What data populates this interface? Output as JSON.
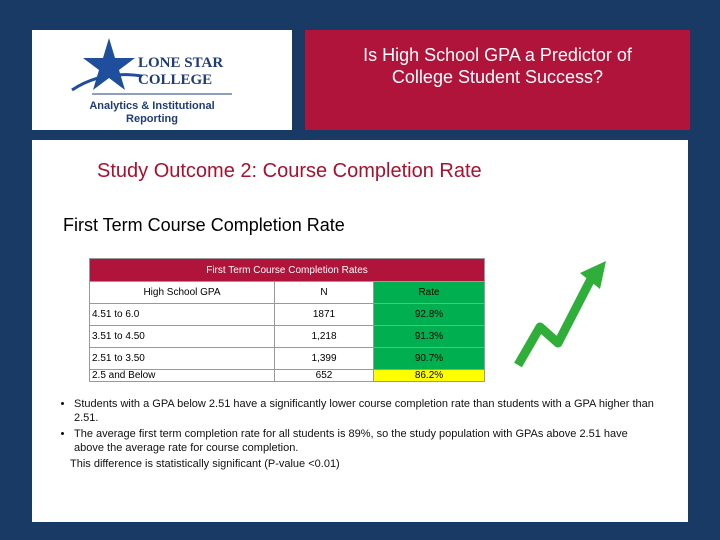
{
  "header": {
    "title": [
      "Is High School GPA a Predictor of",
      "College Student Success?"
    ]
  },
  "logo": {
    "line1": "LONE STAR",
    "line2": "COLLEGE",
    "dept1": "Analytics & Institutional",
    "dept2": "Reporting"
  },
  "heading": "Study Outcome 2: Course Completion Rate",
  "subheading": "First Term Course Completion Rate",
  "table": {
    "title": "First Term Course Completion Rates",
    "columns": [
      "High School GPA",
      "N",
      "Rate"
    ],
    "rows": [
      [
        "4.51 to 6.0",
        "1871",
        "92.8%"
      ],
      [
        "3.51 to 4.50",
        "1,218",
        "91.3%"
      ],
      [
        "2.51 to 3.50",
        "1,399",
        "90.7%"
      ],
      [
        "2.5 and Below",
        "652",
        "86.2%"
      ]
    ]
  },
  "bullets": [
    "Students with a GPA below 2.51 have a significantly lower course completion rate than students with a GPA higher than 2.51.",
    "The average first term completion rate for all students is 89%, so the study population with GPAs above 2.51 have above the average rate for course completion."
  ],
  "note": "This difference is statistically significant (P-value <0.01)"
}
